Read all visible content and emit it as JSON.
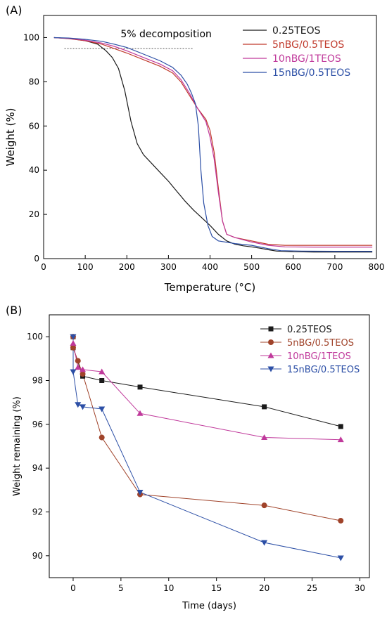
{
  "chart_data": [
    {
      "panel_label": "(A)",
      "type": "line",
      "xlabel": "Temperature (°C)",
      "ylabel": "Weight (%)",
      "xlim": [
        0,
        800
      ],
      "ylim": [
        0,
        110
      ],
      "xticks": [
        "0",
        "100",
        "200",
        "300",
        "400",
        "500",
        "600",
        "700",
        "800"
      ],
      "yticks": [
        "0",
        "20",
        "40",
        "60",
        "80",
        "100"
      ],
      "grid": false,
      "legend_position": "top-right",
      "annotation": {
        "text": "5% decomposition",
        "reference_y": 95,
        "x_range": [
          50,
          360
        ]
      },
      "series": [
        {
          "name": "0.25TEOS",
          "color": "#1a1a1a",
          "points": [
            [
              25,
              100
            ],
            [
              60,
              99.6
            ],
            [
              100,
              98.6
            ],
            [
              130,
              97
            ],
            [
              150,
              94
            ],
            [
              165,
              91
            ],
            [
              180,
              86
            ],
            [
              195,
              76
            ],
            [
              210,
              62
            ],
            [
              225,
              52
            ],
            [
              240,
              47
            ],
            [
              260,
              43
            ],
            [
              280,
              39
            ],
            [
              300,
              35
            ],
            [
              320,
              30.5
            ],
            [
              340,
              26
            ],
            [
              360,
              22
            ],
            [
              380,
              18.5
            ],
            [
              400,
              15
            ],
            [
              420,
              11
            ],
            [
              440,
              8
            ],
            [
              460,
              6.5
            ],
            [
              480,
              5.8
            ],
            [
              500,
              5.3
            ],
            [
              520,
              4.7
            ],
            [
              540,
              4
            ],
            [
              560,
              3.4
            ],
            [
              600,
              3.1
            ],
            [
              650,
              3
            ],
            [
              700,
              3
            ],
            [
              750,
              3
            ],
            [
              790,
              3
            ]
          ]
        },
        {
          "name": "5nBG/0.5TEOS",
          "color": "#c0392b",
          "points": [
            [
              25,
              100
            ],
            [
              60,
              99.5
            ],
            [
              100,
              98.6
            ],
            [
              140,
              97
            ],
            [
              170,
              95
            ],
            [
              200,
              93
            ],
            [
              240,
              90
            ],
            [
              280,
              87
            ],
            [
              310,
              84
            ],
            [
              330,
              80
            ],
            [
              350,
              74
            ],
            [
              370,
              68
            ],
            [
              390,
              63
            ],
            [
              400,
              58
            ],
            [
              410,
              48
            ],
            [
              420,
              32
            ],
            [
              430,
              17
            ],
            [
              440,
              11
            ],
            [
              460,
              9.5
            ],
            [
              500,
              8
            ],
            [
              540,
              6.5
            ],
            [
              580,
              6
            ],
            [
              650,
              6
            ],
            [
              720,
              6
            ],
            [
              790,
              6
            ]
          ]
        },
        {
          "name": "10nBG/1TEOS",
          "color": "#c0399b",
          "points": [
            [
              25,
              100
            ],
            [
              60,
              99.6
            ],
            [
              100,
              98.8
            ],
            [
              140,
              97.5
            ],
            [
              170,
              96
            ],
            [
              200,
              94
            ],
            [
              240,
              91
            ],
            [
              280,
              88
            ],
            [
              310,
              85
            ],
            [
              330,
              81
            ],
            [
              350,
              75
            ],
            [
              370,
              68
            ],
            [
              390,
              62
            ],
            [
              400,
              55
            ],
            [
              410,
              45
            ],
            [
              420,
              30
            ],
            [
              430,
              17
            ],
            [
              440,
              11
            ],
            [
              460,
              9.5
            ],
            [
              500,
              7.5
            ],
            [
              540,
              6
            ],
            [
              580,
              5.3
            ],
            [
              650,
              5.2
            ],
            [
              720,
              5.2
            ],
            [
              790,
              5.2
            ]
          ]
        },
        {
          "name": "15nBG/0.5TEOS",
          "color": "#2c4fa6",
          "points": [
            [
              25,
              100
            ],
            [
              60,
              99.8
            ],
            [
              100,
              99.2
            ],
            [
              140,
              98.3
            ],
            [
              170,
              97
            ],
            [
              200,
              95.5
            ],
            [
              240,
              92.5
            ],
            [
              280,
              89.5
            ],
            [
              310,
              86.5
            ],
            [
              330,
              83
            ],
            [
              345,
              79
            ],
            [
              355,
              75
            ],
            [
              365,
              70
            ],
            [
              372,
              60
            ],
            [
              378,
              40
            ],
            [
              385,
              25
            ],
            [
              395,
              15
            ],
            [
              405,
              10
            ],
            [
              420,
              8
            ],
            [
              460,
              6.8
            ],
            [
              500,
              6
            ],
            [
              540,
              4.5
            ],
            [
              570,
              3.6
            ],
            [
              620,
              3.4
            ],
            [
              700,
              3.3
            ],
            [
              790,
              3.3
            ]
          ]
        }
      ]
    },
    {
      "panel_label": "(B)",
      "type": "line",
      "xlabel": "Time (days)",
      "ylabel": "Weight remaining (%)",
      "xlim": [
        -2.5,
        31
      ],
      "ylim": [
        89,
        101
      ],
      "xticks": [
        "0",
        "5",
        "10",
        "15",
        "20",
        "25",
        "30"
      ],
      "yticks": [
        "90",
        "92",
        "94",
        "96",
        "98",
        "100"
      ],
      "grid": false,
      "legend_position": "top-right",
      "series": [
        {
          "name": "0.25TEOS",
          "color": "#1a1a1a",
          "marker": "square",
          "points": [
            [
              0,
              100
            ],
            [
              0,
              99.5
            ],
            [
              1,
              98.2
            ],
            [
              3,
              98
            ],
            [
              7,
              97.7
            ],
            [
              20,
              96.8
            ],
            [
              28,
              95.9
            ]
          ]
        },
        {
          "name": "5nBG/0.5TEOS",
          "color": "#a0432a",
          "marker": "circle",
          "points": [
            [
              0,
              100
            ],
            [
              0,
              99.5
            ],
            [
              0.5,
              98.9
            ],
            [
              1,
              98.3
            ],
            [
              3,
              95.4
            ],
            [
              7,
              92.8
            ],
            [
              20,
              92.3
            ],
            [
              28,
              91.6
            ]
          ]
        },
        {
          "name": "10nBG/1TEOS",
          "color": "#c0399b",
          "marker": "triangle-up",
          "points": [
            [
              0,
              99.7
            ],
            [
              0.5,
              98.6
            ],
            [
              1,
              98.5
            ],
            [
              3,
              98.4
            ],
            [
              7,
              96.5
            ],
            [
              20,
              95.4
            ],
            [
              28,
              95.3
            ]
          ]
        },
        {
          "name": "15nBG/0.5TEOS",
          "color": "#2c4fa6",
          "marker": "triangle-down",
          "points": [
            [
              0,
              100
            ],
            [
              0,
              98.4
            ],
            [
              0.5,
              96.9
            ],
            [
              1,
              96.8
            ],
            [
              3,
              96.7
            ],
            [
              7,
              92.9
            ],
            [
              20,
              90.6
            ],
            [
              28,
              89.9
            ]
          ]
        }
      ]
    }
  ]
}
